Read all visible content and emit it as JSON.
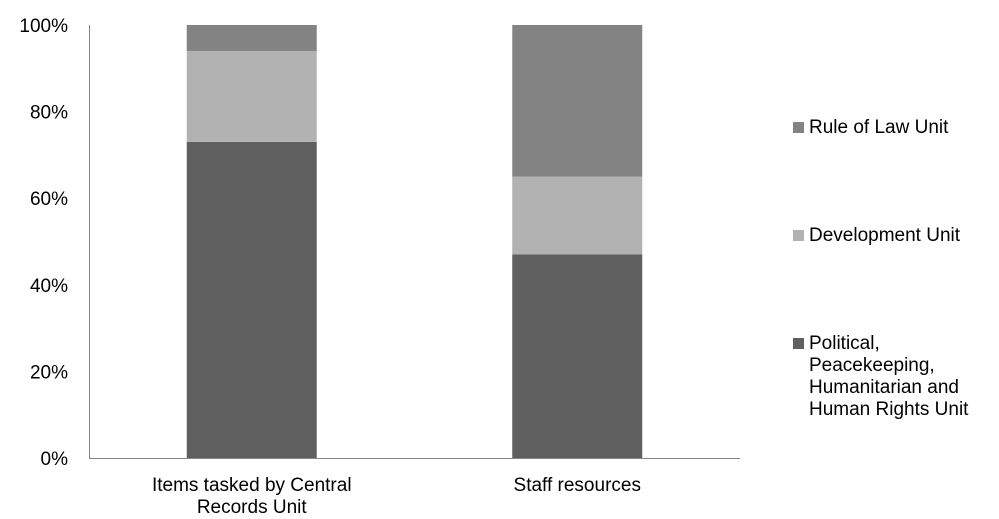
{
  "chart_data": {
    "type": "bar",
    "stacked": true,
    "percent": true,
    "categories": [
      [
        "Items tasked by Central",
        "Records Unit"
      ],
      [
        "Staff resources"
      ]
    ],
    "y_ticks": [
      "0%",
      "20%",
      "40%",
      "60%",
      "80%",
      "100%"
    ],
    "ylim": [
      0,
      100
    ],
    "grid": false,
    "legend_position": "right",
    "series": [
      {
        "name": [
          "Political,",
          "Peacekeeping,",
          "Humanitarian and",
          "Human Rights Unit"
        ],
        "color": "#606060",
        "values": [
          73,
          47
        ]
      },
      {
        "name": [
          "Development Unit"
        ],
        "color": "#b2b2b2",
        "values": [
          21,
          18
        ]
      },
      {
        "name": [
          "Rule of Law Unit"
        ],
        "color": "#838383",
        "values": [
          6,
          35
        ]
      }
    ]
  }
}
